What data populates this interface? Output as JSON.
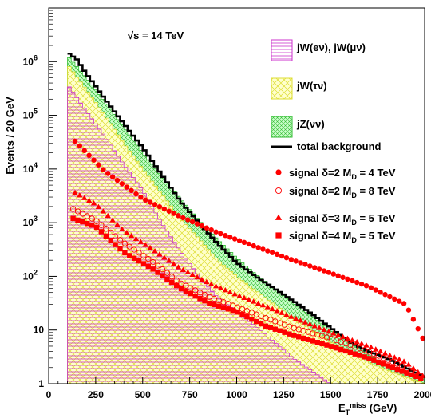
{
  "chart_data": {
    "type": "area",
    "title": "",
    "annotation": "√s = 14 TeV",
    "xlabel_main": "E",
    "xlabel_sub": "T",
    "xlabel_sup": "miss",
    "xlabel_unit": "(GeV)",
    "ylabel": "Events / 20 GeV",
    "xlim": [
      0,
      2000
    ],
    "ylim": [
      1,
      10000000
    ],
    "yscale": "log",
    "grid": false,
    "legend_position": "right",
    "x_ticks": [
      0,
      250,
      500,
      750,
      1000,
      1250,
      1500,
      1750,
      2000
    ],
    "y_ticks": [
      {
        "value": 1,
        "base": "1",
        "exp": ""
      },
      {
        "value": 10,
        "base": "10",
        "exp": ""
      },
      {
        "value": 100,
        "base": "10",
        "exp": "2"
      },
      {
        "value": 1000,
        "base": "10",
        "exp": "3"
      },
      {
        "value": 10000,
        "base": "10",
        "exp": "4"
      },
      {
        "value": 100000,
        "base": "10",
        "exp": "5"
      },
      {
        "value": 1000000,
        "base": "10",
        "exp": "6"
      }
    ],
    "series": [
      {
        "name": "jW(eν), jW(μν)",
        "kind": "hist",
        "color": "#cc33cc",
        "points": [
          [
            100,
            380000
          ],
          [
            200,
            120000
          ],
          [
            300,
            40000
          ],
          [
            400,
            12000
          ],
          [
            500,
            4000
          ],
          [
            600,
            1000
          ],
          [
            700,
            300
          ],
          [
            800,
            100
          ],
          [
            900,
            40
          ],
          [
            1000,
            22
          ],
          [
            1100,
            12
          ],
          [
            1200,
            6
          ],
          [
            1300,
            3
          ],
          [
            1500,
            1
          ]
        ]
      },
      {
        "name": "jW(τν)",
        "kind": "hist",
        "color": "#dddd33",
        "points": [
          [
            100,
            900000
          ],
          [
            200,
            300000
          ],
          [
            300,
            100000
          ],
          [
            400,
            30000
          ],
          [
            500,
            10000
          ],
          [
            600,
            3500
          ],
          [
            700,
            1200
          ],
          [
            800,
            500
          ],
          [
            900,
            200
          ],
          [
            1000,
            100
          ],
          [
            1100,
            55
          ],
          [
            1200,
            30
          ],
          [
            1300,
            17
          ],
          [
            1400,
            10
          ],
          [
            1500,
            6
          ],
          [
            1600,
            4
          ],
          [
            1700,
            2.5
          ],
          [
            1800,
            1.8
          ],
          [
            2000,
            1
          ]
        ]
      },
      {
        "name": "jZ(νν)",
        "kind": "hist",
        "color": "#33bb33",
        "points": [
          [
            100,
            1300000
          ],
          [
            200,
            500000
          ],
          [
            300,
            180000
          ],
          [
            400,
            60000
          ],
          [
            500,
            20000
          ],
          [
            600,
            7500
          ],
          [
            700,
            2800
          ],
          [
            800,
            1100
          ],
          [
            900,
            480
          ],
          [
            1000,
            220
          ],
          [
            1100,
            110
          ],
          [
            1200,
            60
          ],
          [
            1300,
            32
          ],
          [
            1400,
            18
          ],
          [
            1500,
            10
          ],
          [
            1600,
            6
          ],
          [
            1700,
            3.5
          ],
          [
            1800,
            2.2
          ],
          [
            1900,
            1.6
          ],
          [
            2000,
            1.2
          ]
        ]
      },
      {
        "name": "total background",
        "kind": "line",
        "color": "#000000",
        "points": [
          [
            100,
            1500000
          ],
          [
            150,
            1100000
          ],
          [
            200,
            600000
          ],
          [
            300,
            200000
          ],
          [
            400,
            70000
          ],
          [
            500,
            25000
          ],
          [
            600,
            8000
          ],
          [
            700,
            2500
          ],
          [
            800,
            1000
          ],
          [
            900,
            400
          ],
          [
            1000,
            180
          ],
          [
            1100,
            100
          ],
          [
            1200,
            60
          ],
          [
            1300,
            35
          ],
          [
            1400,
            20
          ],
          [
            1500,
            11
          ],
          [
            1600,
            6
          ],
          [
            1700,
            4
          ],
          [
            1800,
            3
          ],
          [
            1900,
            2
          ],
          [
            2000,
            1.3
          ]
        ]
      },
      {
        "name": "signal δ=2  M",
        "sub": "D",
        "suffix": " = 4 TeV",
        "kind": "marker",
        "marker": "circle",
        "color": "#ff0000",
        "points": [
          [
            140,
            33000
          ],
          [
            300,
            9000
          ],
          [
            500,
            2800
          ],
          [
            700,
            1300
          ],
          [
            900,
            650
          ],
          [
            1100,
            360
          ],
          [
            1300,
            200
          ],
          [
            1500,
            115
          ],
          [
            1700,
            65
          ],
          [
            1900,
            30
          ],
          [
            2000,
            6
          ]
        ]
      },
      {
        "name": "signal δ=2  M",
        "sub": "D",
        "suffix": " = 8 TeV",
        "kind": "marker",
        "marker": "open-circle",
        "color": "#ff0000",
        "points": [
          [
            130,
            1800
          ],
          [
            250,
            1100
          ],
          [
            400,
            420
          ],
          [
            550,
            190
          ],
          [
            700,
            75
          ],
          [
            850,
            42
          ],
          [
            1000,
            27
          ],
          [
            1150,
            17
          ],
          [
            1300,
            11
          ],
          [
            1500,
            7
          ],
          [
            1700,
            4
          ],
          [
            1900,
            2
          ],
          [
            2000,
            1.3
          ]
        ]
      },
      {
        "name": "signal δ=3  M",
        "sub": "D",
        "suffix": " = 5 TeV",
        "kind": "marker",
        "marker": "triangle",
        "color": "#ff0000",
        "points": [
          [
            140,
            3600
          ],
          [
            250,
            2200
          ],
          [
            400,
            700
          ],
          [
            550,
            320
          ],
          [
            700,
            140
          ],
          [
            850,
            75
          ],
          [
            1000,
            45
          ],
          [
            1150,
            28
          ],
          [
            1300,
            17
          ],
          [
            1500,
            9
          ],
          [
            1700,
            5
          ],
          [
            1900,
            2.5
          ],
          [
            2000,
            1.3
          ]
        ]
      },
      {
        "name": "signal δ=4  M",
        "sub": "D",
        "suffix": " = 5 TeV",
        "kind": "marker",
        "marker": "square",
        "color": "#ff0000",
        "points": [
          [
            130,
            1200
          ],
          [
            250,
            850
          ],
          [
            400,
            280
          ],
          [
            550,
            140
          ],
          [
            700,
            60
          ],
          [
            850,
            32
          ],
          [
            1000,
            22
          ],
          [
            1150,
            12
          ],
          [
            1300,
            8
          ],
          [
            1500,
            5
          ],
          [
            1700,
            3
          ],
          [
            1900,
            1.6
          ],
          [
            2000,
            1.2
          ]
        ]
      }
    ]
  }
}
